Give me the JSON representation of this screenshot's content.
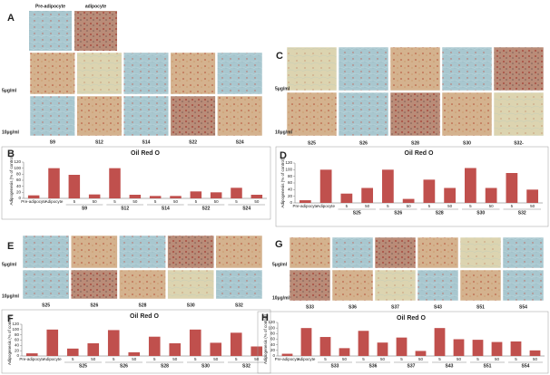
{
  "image_panels": [
    {
      "label": "A",
      "top_labels": [
        "Pre-adipocyte",
        "adipocyte"
      ],
      "row_labels": [
        "5μg/ml",
        "10μg/ml"
      ],
      "column_labels": [
        "S9",
        "S12",
        "S14",
        "S22",
        "S24"
      ]
    },
    {
      "label": "C",
      "row_labels": [
        "5μg/ml",
        "10μg/ml"
      ],
      "column_labels": [
        "S25",
        "S26",
        "S28",
        "S30",
        "S32-"
      ]
    },
    {
      "label": "E",
      "row_labels": [
        "5μg/ml",
        "10μg/ml"
      ],
      "column_labels": [
        "S25",
        "S26",
        "S28",
        "S30",
        "S32"
      ]
    },
    {
      "label": "G",
      "row_labels": [
        "5μg/ml",
        "10μg/ml"
      ],
      "column_labels": [
        "S33",
        "S36",
        "S37",
        "S43",
        "S51",
        "S54"
      ]
    }
  ],
  "chart_data": [
    {
      "type": "bar",
      "panel_label": "B",
      "title": "Oil Red O",
      "y_label": "Adipogenesis (% of control)",
      "color": "#c0504d",
      "categories": [
        "Pre-adipocyte",
        "Adipocyte",
        "5",
        "50",
        "5",
        "50",
        "5",
        "50",
        "5",
        "50",
        "5",
        "50"
      ],
      "groups": [
        "S9",
        "S12",
        "S14",
        "S22",
        "S24"
      ],
      "values": [
        10,
        100,
        78,
        13,
        100,
        12,
        8,
        8,
        23,
        20,
        35,
        12
      ],
      "ylim": [
        0,
        120
      ],
      "yticks": [
        0,
        20,
        40,
        60,
        80,
        100,
        120
      ]
    },
    {
      "type": "bar",
      "panel_label": "D",
      "title": "Oil Red O",
      "y_label": "Adipogenesis (% of control)",
      "color": "#c0504d",
      "categories": [
        "Pre-adipocyte",
        "Adipocyte",
        "5",
        "50",
        "5",
        "50",
        "5",
        "50",
        "5",
        "50",
        "5",
        "50"
      ],
      "groups": [
        "S25",
        "S26",
        "S28",
        "S30",
        "S32"
      ],
      "values": [
        8,
        100,
        28,
        45,
        100,
        12,
        70,
        45,
        105,
        45,
        90,
        40
      ],
      "ylim": [
        0,
        120
      ],
      "yticks": [
        0,
        20,
        40,
        60,
        80,
        100,
        120
      ]
    },
    {
      "type": "bar",
      "panel_label": "F",
      "title": "Oil Red O",
      "y_label": "Adipogenesis (% of control)",
      "color": "#c0504d",
      "categories": [
        "Pre-adipocyte",
        "Adipocyte",
        "5",
        "50",
        "5",
        "50",
        "5",
        "50",
        "5",
        "50",
        "5",
        "50"
      ],
      "groups": [
        "S25",
        "S26",
        "S28",
        "S30",
        "S32"
      ],
      "values": [
        10,
        100,
        28,
        48,
        98,
        14,
        73,
        48,
        100,
        50,
        88,
        36
      ],
      "ylim": [
        0,
        120
      ],
      "yticks": [
        0,
        20,
        40,
        60,
        80,
        100,
        120
      ]
    },
    {
      "type": "bar",
      "panel_label": "H",
      "title": "Oil Red O",
      "y_label": "Adipogenesis (% of control)",
      "color": "#c0504d",
      "categories": [
        "Pre-adipocyte",
        "Adipocyte",
        "5",
        "50",
        "5",
        "50",
        "5",
        "50",
        "5",
        "50",
        "5",
        "50",
        "5",
        "50"
      ],
      "groups": [
        "S33",
        "S36",
        "S37",
        "S43",
        "S51",
        "S54"
      ],
      "values": [
        8,
        100,
        68,
        28,
        90,
        48,
        66,
        18,
        100,
        60,
        58,
        50,
        52,
        20
      ],
      "ylim": [
        0,
        120
      ],
      "yticks": [
        0,
        20,
        40,
        60,
        80,
        100,
        120
      ]
    }
  ]
}
